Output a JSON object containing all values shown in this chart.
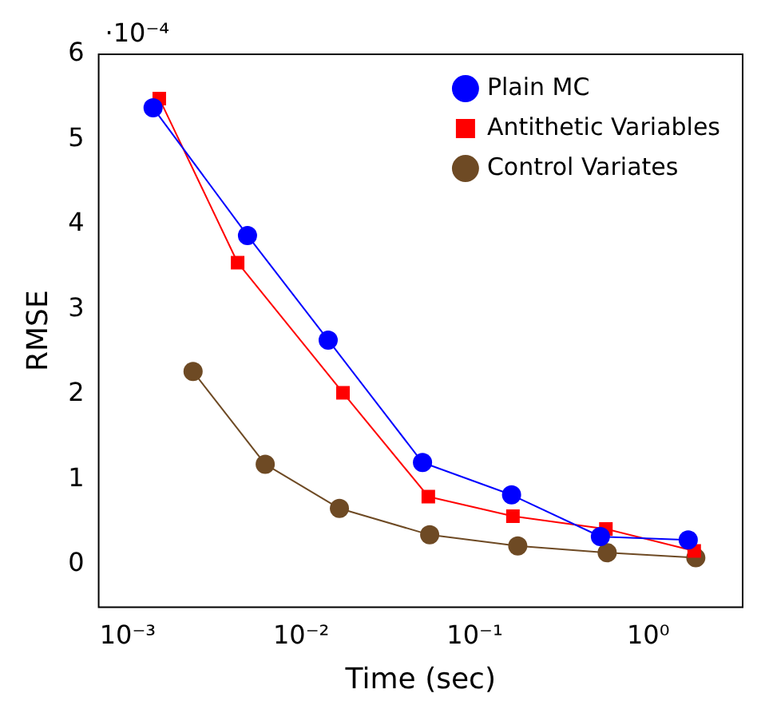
{
  "chart_data": {
    "type": "line",
    "xlabel": "Time (sec)",
    "ylabel": "RMSE",
    "annotations": [
      "·10⁻⁴"
    ],
    "log": "x",
    "xlim": [
      0.00068,
      3.5
    ],
    "xticks": [
      {
        "value": 0.001,
        "label": "10⁻³"
      },
      {
        "value": 0.01,
        "label": "10⁻²"
      },
      {
        "value": 0.1,
        "label": "10⁻¹"
      },
      {
        "value": 1,
        "label": "10⁰"
      }
    ],
    "ylim": [
      -0.5,
      6
    ],
    "yticks": [
      0,
      1,
      2,
      3,
      4,
      5,
      6
    ],
    "grid": false,
    "legend": "top right",
    "series": [
      {
        "name": "Plain MC",
        "color": "#0000ff",
        "marker": "circle",
        "x": [
          0.0014,
          0.0049,
          0.0143,
          0.05,
          0.163,
          0.53,
          1.7
        ],
        "values": [
          5.37,
          3.87,
          2.64,
          1.2,
          0.82,
          0.33,
          0.29
        ]
      },
      {
        "name": "Antithetic Variables",
        "color": "#ff0000",
        "marker": "square",
        "x": [
          0.00152,
          0.0043,
          0.0174,
          0.054,
          0.166,
          0.57,
          1.84
        ],
        "values": [
          5.48,
          3.55,
          2.02,
          0.8,
          0.57,
          0.42,
          0.16
        ]
      },
      {
        "name": "Control Variates",
        "color": "#6e4a24",
        "marker": "circle",
        "x": [
          0.00238,
          0.0062,
          0.0166,
          0.055,
          0.177,
          0.58,
          1.88
        ],
        "values": [
          2.27,
          1.18,
          0.66,
          0.35,
          0.22,
          0.14,
          0.08
        ]
      }
    ]
  }
}
